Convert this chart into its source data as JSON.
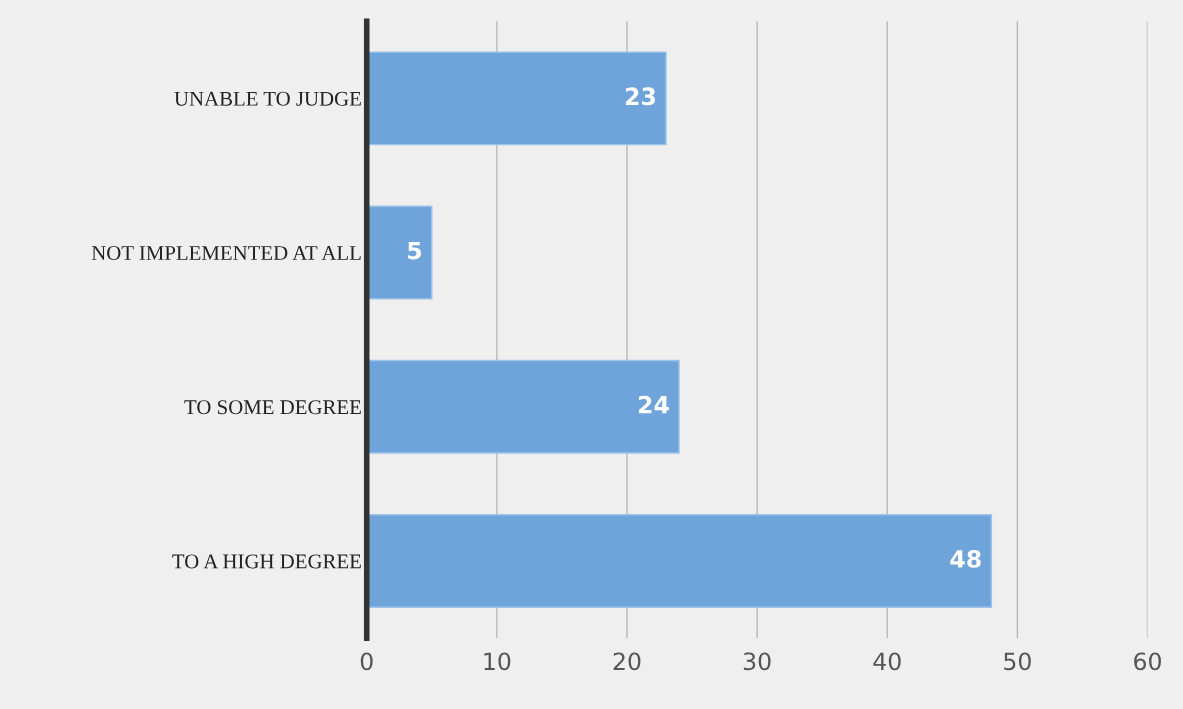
{
  "chart_data": {
    "type": "bar",
    "orientation": "horizontal",
    "categories": [
      "UNABLE TO JUDGE",
      "NOT IMPLEMENTED AT ALL",
      "TO SOME DEGREE",
      "TO A HIGH DEGREE"
    ],
    "values": [
      23,
      5,
      24,
      48
    ],
    "color": "#6fa4da",
    "xlim": [
      0,
      60
    ],
    "xticks": [
      0,
      10,
      20,
      30,
      40,
      50,
      60
    ],
    "grid": "x",
    "data_labels": true
  }
}
